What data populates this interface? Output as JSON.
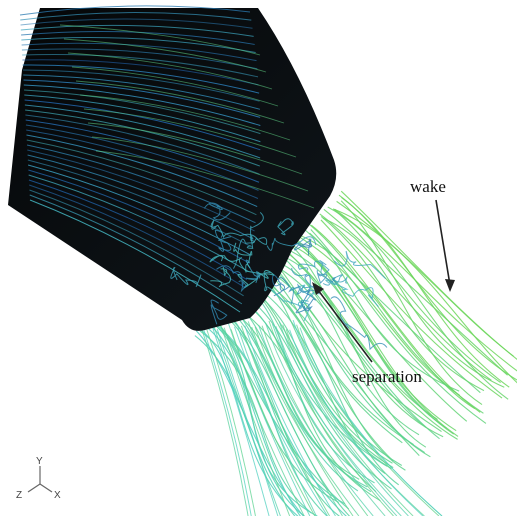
{
  "annotations": {
    "wake": "wake",
    "separation": "separation"
  },
  "axis_triad": {
    "y": "Y",
    "z": "Z",
    "x": "X"
  },
  "colors": {
    "body": "#0a0d10",
    "streamline_dark": "#1f5fa8",
    "streamline_light": "#4fd0c8",
    "streamline_green": "#6cd65a",
    "arrow": "#222222"
  }
}
